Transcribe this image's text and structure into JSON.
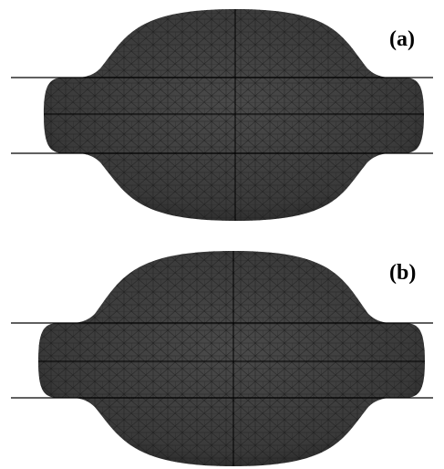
{
  "panels": [
    {
      "label": "(a)"
    },
    {
      "label": "(b)"
    }
  ],
  "colors": {
    "body": "#3a3a3a",
    "mesh": "#1a1a1a",
    "line": "#000000",
    "background": "#ffffff"
  }
}
